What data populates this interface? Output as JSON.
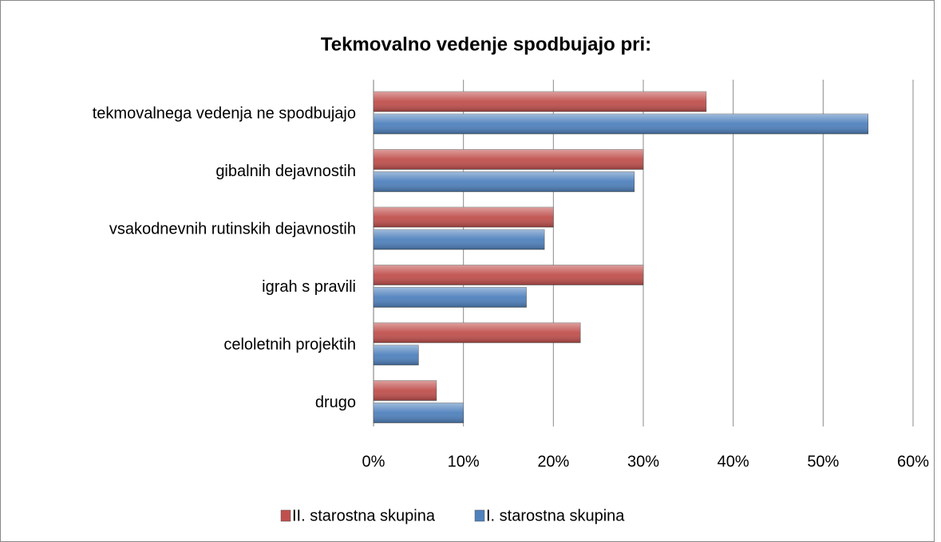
{
  "chart_data": {
    "type": "hbar",
    "title": "Tekmovalno vedenje spodbujajo pri:",
    "categories": [
      "tekmovalnega vedenja ne spodbujajo",
      "gibalnih dejavnostih",
      "vsakodnevnih rutinskih dejavnostih",
      "igrah s pravili",
      "celoletnih projektih",
      "drugo"
    ],
    "series": [
      {
        "name": "II. starostna skupina",
        "color": "#c0504d",
        "values": [
          37,
          30,
          20,
          30,
          23,
          7
        ]
      },
      {
        "name": "I. starostna skupina",
        "color": "#4f81bd",
        "values": [
          55,
          29,
          19,
          17,
          5,
          10
        ]
      }
    ],
    "xlim": [
      0,
      60
    ],
    "xticks": [
      {
        "value": 0,
        "label": "0%"
      },
      {
        "value": 10,
        "label": "10%"
      },
      {
        "value": 20,
        "label": "20%"
      },
      {
        "value": 30,
        "label": "30%"
      },
      {
        "value": 40,
        "label": "40%"
      },
      {
        "value": 50,
        "label": "50%"
      },
      {
        "value": 60,
        "label": "60%"
      }
    ],
    "grid": true,
    "legend": "bottom"
  }
}
